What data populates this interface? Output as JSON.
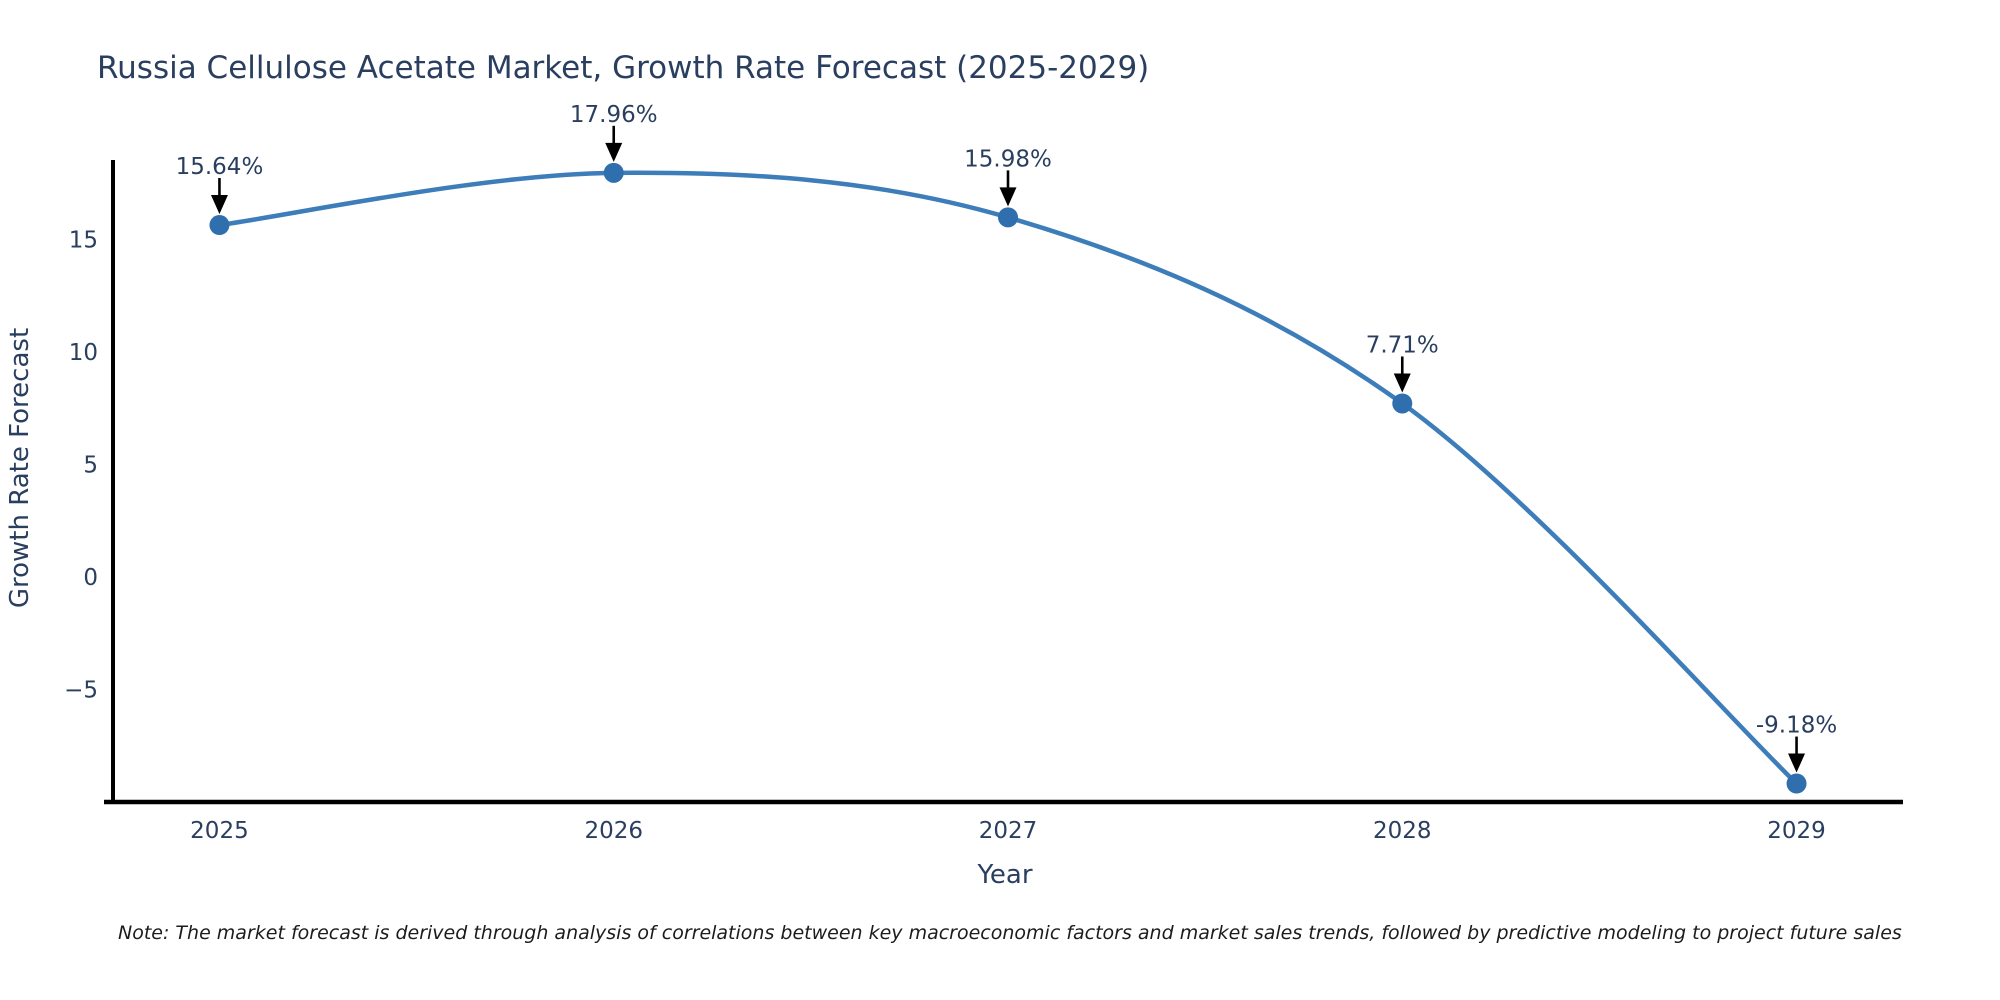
{
  "chart_data": {
    "type": "line",
    "title": "Russia Cellulose Acetate Market, Growth Rate Forecast (2025-2029)",
    "xlabel": "Year",
    "ylabel": "Growth Rate Forecast",
    "x": [
      2025,
      2026,
      2027,
      2028,
      2029
    ],
    "series": [
      {
        "name": "Growth Rate Forecast",
        "values": [
          15.64,
          17.96,
          15.98,
          7.71,
          -9.18
        ],
        "point_labels": [
          "15.64%",
          "17.96%",
          "15.98%",
          "7.71%",
          "-9.18%"
        ]
      }
    ],
    "xticks": [
      "2025",
      "2026",
      "2027",
      "2028",
      "2029"
    ],
    "yticks": [
      15,
      10,
      5,
      0,
      -5
    ],
    "xlim": [
      2024.73,
      2029.27
    ],
    "ylim": [
      -10.0,
      18.53
    ],
    "line_shape": "spline",
    "grid": false,
    "legend_position": "none",
    "annotations_have_arrows": true,
    "colors": {
      "line": "#3d7dba",
      "marker": "#2f6fae",
      "axis": "#000000",
      "arrow": "#000000",
      "text": "#2a3f5f",
      "background": "#ffffff"
    }
  },
  "footnote": "Note: The market forecast is derived through analysis of correlations between key macroeconomic factors and market sales trends, followed by predictive modeling to project future sales"
}
